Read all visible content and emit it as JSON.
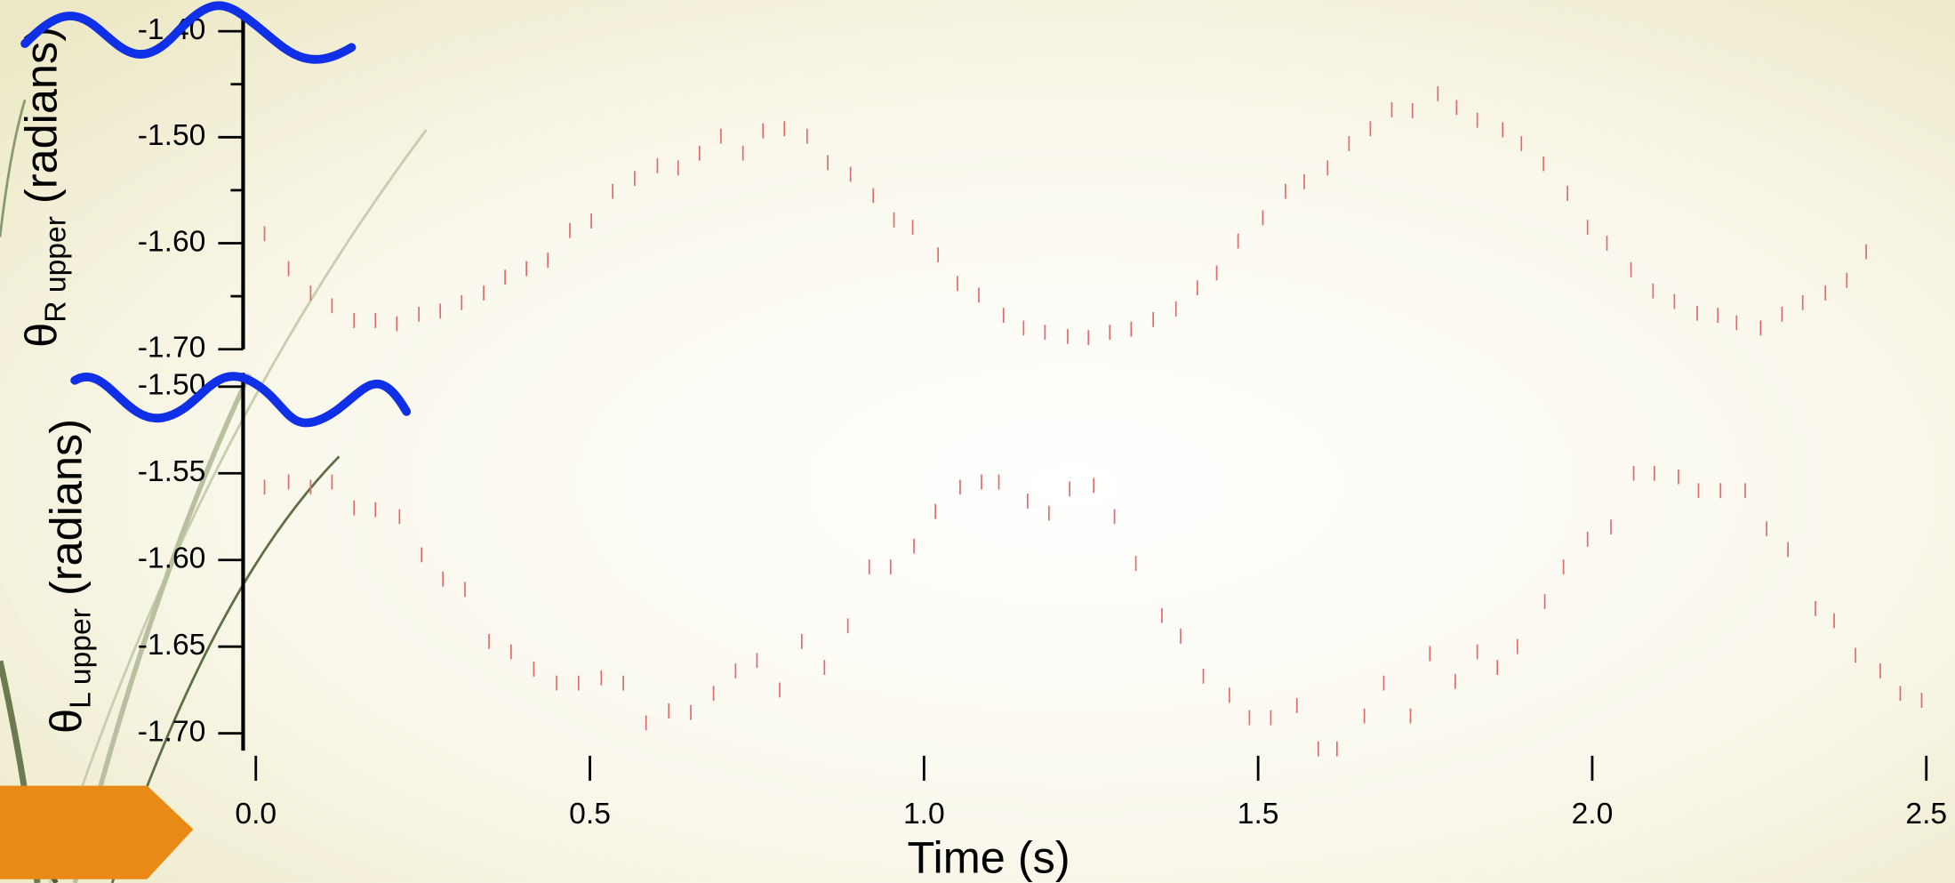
{
  "chart_data": [
    {
      "type": "scatter",
      "y_label": {
        "symbol": "θ",
        "subscript": "R upper",
        "unit": "(radians)"
      },
      "color": "#e26a6a",
      "xlim": [
        -0.019,
        2.5
      ],
      "ylim": [
        -1.7,
        -1.388
      ],
      "yticks": [
        {
          "value": -1.4,
          "label": "-1.40"
        },
        {
          "value": -1.5,
          "label": "-1.50"
        },
        {
          "value": -1.6,
          "label": "-1.60"
        },
        {
          "value": -1.7,
          "label": "-1.70"
        }
      ],
      "yminorticks": [
        -1.45,
        -1.55,
        -1.65
      ],
      "x": [
        0.013,
        0.049,
        0.082,
        0.114,
        0.147,
        0.179,
        0.211,
        0.244,
        0.276,
        0.308,
        0.341,
        0.373,
        0.405,
        0.437,
        0.47,
        0.502,
        0.534,
        0.567,
        0.601,
        0.632,
        0.664,
        0.696,
        0.729,
        0.759,
        0.791,
        0.825,
        0.856,
        0.89,
        0.924,
        0.955,
        0.983,
        1.021,
        1.05,
        1.082,
        1.119,
        1.149,
        1.181,
        1.215,
        1.246,
        1.278,
        1.31,
        1.343,
        1.377,
        1.409,
        1.438,
        1.47,
        1.507,
        1.541,
        1.569,
        1.604,
        1.636,
        1.668,
        1.7,
        1.731,
        1.769,
        1.797,
        1.828,
        1.866,
        1.894,
        1.927,
        1.963,
        1.993,
        2.022,
        2.058,
        2.091,
        2.123,
        2.157,
        2.188,
        2.216,
        2.252,
        2.284,
        2.315,
        2.349,
        2.381,
        2.41
      ],
      "values": [
        -1.591,
        -1.624,
        -1.647,
        -1.659,
        -1.673,
        -1.673,
        -1.676,
        -1.667,
        -1.664,
        -1.656,
        -1.647,
        -1.632,
        -1.624,
        -1.616,
        -1.588,
        -1.579,
        -1.551,
        -1.539,
        -1.527,
        -1.529,
        -1.515,
        -1.499,
        -1.515,
        -1.494,
        -1.492,
        -1.499,
        -1.524,
        -1.535,
        -1.555,
        -1.578,
        -1.585,
        -1.611,
        -1.638,
        -1.649,
        -1.668,
        -1.68,
        -1.684,
        -1.688,
        -1.689,
        -1.684,
        -1.681,
        -1.672,
        -1.662,
        -1.642,
        -1.628,
        -1.598,
        -1.576,
        -1.551,
        -1.542,
        -1.529,
        -1.506,
        -1.492,
        -1.474,
        -1.475,
        -1.459,
        -1.472,
        -1.484,
        -1.493,
        -1.506,
        -1.525,
        -1.553,
        -1.585,
        -1.6,
        -1.625,
        -1.645,
        -1.655,
        -1.666,
        -1.668,
        -1.675,
        -1.68,
        -1.667,
        -1.656,
        -1.647,
        -1.635,
        -1.608
      ]
    },
    {
      "type": "scatter",
      "y_label": {
        "symbol": "θ",
        "subscript": "L upper",
        "unit": "(radians)"
      },
      "x_label": "Time (s)",
      "color": "#e26a6a",
      "xlim": [
        -0.019,
        2.5
      ],
      "ylim": [
        -1.71,
        -1.492
      ],
      "xticks": [
        {
          "value": 0,
          "label": "0.0"
        },
        0.5,
        {
          "value": 1,
          "label": "1.0"
        },
        1.5,
        {
          "value": 2,
          "label": "2.0"
        },
        2.5
      ],
      "yticks": [
        {
          "value": -1.5,
          "label": "-1.50"
        },
        -1.55,
        {
          "value": -1.6,
          "label": "-1.60"
        },
        -1.65,
        {
          "value": -1.7,
          "label": "-1.70"
        }
      ],
      "x": [
        0.013,
        0.049,
        0.082,
        0.114,
        0.147,
        0.179,
        0.215,
        0.248,
        0.28,
        0.313,
        0.349,
        0.382,
        0.416,
        0.45,
        0.483,
        0.517,
        0.55,
        0.584,
        0.618,
        0.651,
        0.685,
        0.718,
        0.75,
        0.784,
        0.817,
        0.851,
        0.886,
        0.918,
        0.95,
        0.985,
        1.017,
        1.054,
        1.086,
        1.112,
        1.155,
        1.187,
        1.218,
        1.254,
        1.285,
        1.317,
        1.356,
        1.384,
        1.418,
        1.457,
        1.487,
        1.519,
        1.558,
        1.59,
        1.618,
        1.659,
        1.688,
        1.728,
        1.757,
        1.795,
        1.828,
        1.858,
        1.888,
        1.929,
        1.957,
        1.993,
        2.028,
        2.062,
        2.093,
        2.129,
        2.159,
        2.192,
        2.229,
        2.261,
        2.293,
        2.334,
        2.362,
        2.394,
        2.431,
        2.461,
        2.493
      ],
      "values": [
        -1.558,
        -1.555,
        -1.558,
        -1.555,
        -1.57,
        -1.571,
        -1.575,
        -1.597,
        -1.611,
        -1.617,
        -1.647,
        -1.653,
        -1.663,
        -1.671,
        -1.671,
        -1.668,
        -1.671,
        -1.694,
        -1.687,
        -1.688,
        -1.677,
        -1.664,
        -1.658,
        -1.675,
        -1.647,
        -1.662,
        -1.638,
        -1.604,
        -1.604,
        -1.592,
        -1.572,
        -1.558,
        -1.555,
        -1.555,
        -1.566,
        -1.573,
        -1.559,
        -1.557,
        -1.575,
        -1.602,
        -1.632,
        -1.644,
        -1.667,
        -1.678,
        -1.691,
        -1.691,
        -1.684,
        -1.709,
        -1.709,
        -1.69,
        -1.671,
        -1.69,
        -1.654,
        -1.67,
        -1.653,
        -1.662,
        -1.65,
        -1.624,
        -1.604,
        -1.588,
        -1.581,
        -1.55,
        -1.55,
        -1.552,
        -1.56,
        -1.56,
        -1.56,
        -1.582,
        -1.594,
        -1.628,
        -1.635,
        -1.655,
        -1.664,
        -1.677,
        -1.681
      ]
    }
  ]
}
